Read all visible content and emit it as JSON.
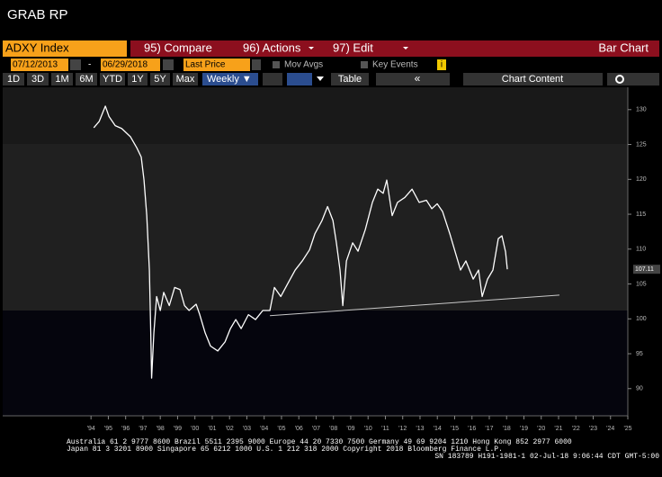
{
  "ui": {
    "title": "GRAB RP",
    "security": "ADXY Index",
    "menu": [
      "95) Compare",
      "96) Actions",
      "97) Edit"
    ],
    "view": "Bar Chart",
    "start_date": "07/12/2013",
    "date_separator": "-",
    "end_date": "06/29/2018",
    "field": "Last Price",
    "options": [
      "Mov Avgs",
      "Key Events"
    ],
    "info": "i",
    "ranges": [
      "1D",
      "3D",
      "1M",
      "6M",
      "YTD",
      "1Y",
      "5Y",
      "Max"
    ],
    "frequency": "Weekly ▼",
    "table": "Table",
    "chart_content": "Chart Content",
    "footer": [
      "Australia 61 2 9777 8600 Brazil 5511 2395 9000 Europe 44 20 7330 7500 Germany 49 69 9204 1210 Hong Kong 852 2977 6000",
      "Japan 81 3 3201 8900        Singapore 65 6212 1000        U.S. 1 212 318 2000        Copyright 2018 Bloomberg Finance L.P.",
      "SN 183789 H191-1981-1 02-Jul-18  9:06:44 CDT  GMT-5:00"
    ]
  },
  "chart_data": {
    "type": "line",
    "color": "#ffffff",
    "x": [
      1994.16,
      1994.47,
      1994.83,
      1995.04,
      1995.4,
      1995.77,
      1996.28,
      1996.65,
      1996.9,
      1997.06,
      1997.22,
      1997.37,
      1997.45,
      1997.5,
      1997.63,
      1997.79,
      1998.0,
      1998.2,
      1998.52,
      1998.83,
      1999.14,
      1999.4,
      1999.66,
      2000.07,
      2000.28,
      2000.59,
      2000.9,
      2001.32,
      2001.74,
      2002.05,
      2002.36,
      2002.67,
      2003.09,
      2003.5,
      2003.92,
      2004.33,
      2004.59,
      2004.96,
      2005.37,
      2005.79,
      2006.2,
      2006.62,
      2006.93,
      2007.34,
      2007.66,
      2007.97,
      2008.17,
      2008.38,
      2008.54,
      2008.75,
      2009.11,
      2009.42,
      2009.84,
      2010.25,
      2010.56,
      2010.87,
      2011.08,
      2011.39,
      2011.7,
      2012.12,
      2012.54,
      2012.95,
      2013.37,
      2013.68,
      2013.99,
      2014.3,
      2014.72,
      2015.03,
      2015.34,
      2015.65,
      2016.07,
      2016.38,
      2016.59,
      2016.9,
      2017.21,
      2017.52,
      2017.73,
      2017.94,
      2018.04
    ],
    "values": [
      127.4,
      128.3,
      130.5,
      129.0,
      127.7,
      127.3,
      126.1,
      124.5,
      123.2,
      119.9,
      114.8,
      107.0,
      98.0,
      91.5,
      98.0,
      103.2,
      101.2,
      103.8,
      101.9,
      104.5,
      104.2,
      101.9,
      101.2,
      102.1,
      100.6,
      98.0,
      96.1,
      95.4,
      96.7,
      98.6,
      99.9,
      98.6,
      100.6,
      99.9,
      101.2,
      101.2,
      104.5,
      103.2,
      105.1,
      107.0,
      108.3,
      109.9,
      112.2,
      114.1,
      116.1,
      114.1,
      110.9,
      107.0,
      101.9,
      108.3,
      110.9,
      109.7,
      112.8,
      116.7,
      118.6,
      118.0,
      119.9,
      114.8,
      116.7,
      117.4,
      118.6,
      116.7,
      117.0,
      115.8,
      116.5,
      115.4,
      112.2,
      109.6,
      107.0,
      108.3,
      105.7,
      107.0,
      103.2,
      105.7,
      107.0,
      111.5,
      111.9,
      109.6,
      107.11
    ],
    "last_value": 107.11,
    "trendline": {
      "color": "#c8c8c8",
      "x": [
        2004.33,
        2021.05
      ],
      "y": [
        100.45,
        103.4
      ]
    },
    "xlim": [
      1988.9,
      2025.0
    ],
    "ylim": [
      86.1,
      133.2
    ],
    "yticks": [
      90,
      95,
      100,
      105,
      110,
      115,
      120,
      125,
      130
    ],
    "xticks": [
      {
        "value": 1994,
        "label": "'94"
      },
      {
        "value": 1995,
        "label": "'95"
      },
      {
        "value": 1996,
        "label": "'96"
      },
      {
        "value": 1997,
        "label": "'97"
      },
      {
        "value": 1998,
        "label": "'98"
      },
      {
        "value": 1999,
        "label": "'99"
      },
      {
        "value": 2000,
        "label": "'00"
      },
      {
        "value": 2001,
        "label": "'01"
      },
      {
        "value": 2002,
        "label": "'02"
      },
      {
        "value": 2003,
        "label": "'03"
      },
      {
        "value": 2004,
        "label": "'04"
      },
      {
        "value": 2005,
        "label": "'05"
      },
      {
        "value": 2006,
        "label": "'06"
      },
      {
        "value": 2007,
        "label": "'07"
      },
      {
        "value": 2008,
        "label": "'08"
      },
      {
        "value": 2009,
        "label": "'09"
      },
      {
        "value": 2010,
        "label": "'10"
      },
      {
        "value": 2011,
        "label": "'11"
      },
      {
        "value": 2012,
        "label": "'12"
      },
      {
        "value": 2013,
        "label": "'13"
      },
      {
        "value": 2014,
        "label": "'14"
      },
      {
        "value": 2015,
        "label": "'15"
      },
      {
        "value": 2016,
        "label": "'16"
      },
      {
        "value": 2017,
        "label": "'17"
      },
      {
        "value": 2018,
        "label": "'18"
      },
      {
        "value": 2019,
        "label": "'19"
      },
      {
        "value": 2020,
        "label": "'20"
      },
      {
        "value": 2021,
        "label": "'21"
      },
      {
        "value": 2022,
        "label": "'22"
      },
      {
        "value": 2023,
        "label": "'23"
      },
      {
        "value": 2024,
        "label": "'24"
      },
      {
        "value": 2025,
        "label": "'25"
      }
    ]
  }
}
